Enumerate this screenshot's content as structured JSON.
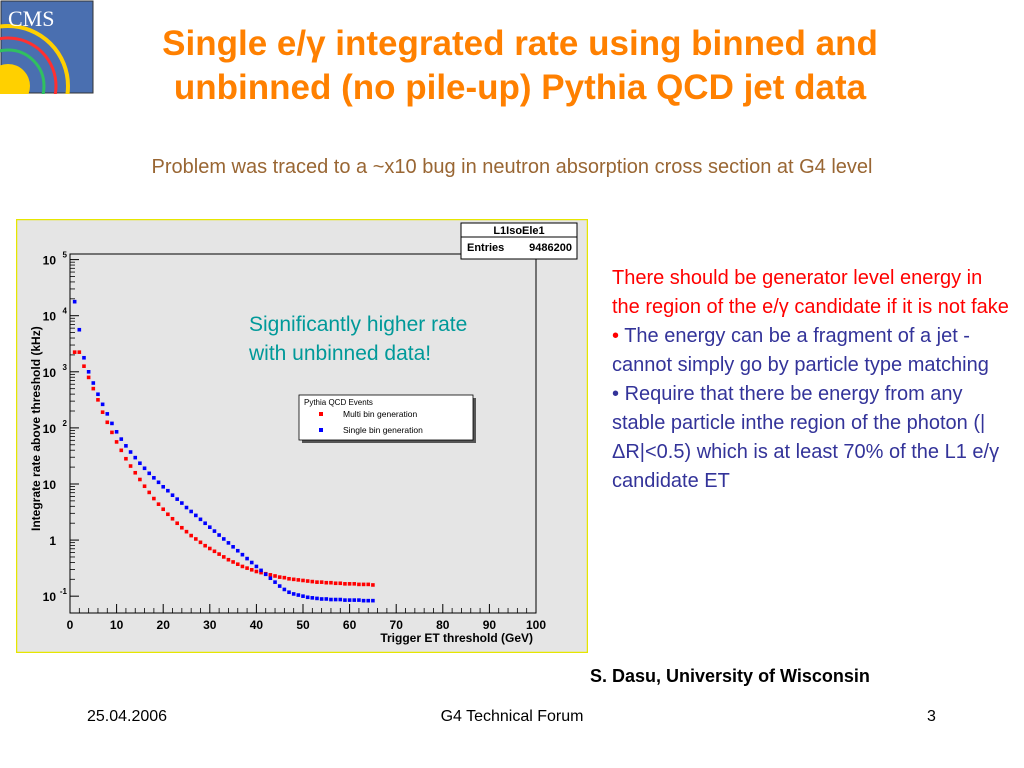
{
  "slide": {
    "title_line1": "Single e/γ integrated rate using binned and",
    "title_line2": "unbinned (no pile-up) Pythia QCD jet data",
    "subtitle": "Problem was traced to a ~x10 bug in neutron absorption cross section at G4 level",
    "logo_text": "CMS",
    "annotation_line1": "Significantly higher rate",
    "annotation_line2": "with unbinned data!",
    "bullets": {
      "intro": "There should be generator level energy in the region of the e/γ candidate if it is not fake",
      "item1": "The energy can be a fragment of a jet - cannot simply go by particle type matching",
      "item2": "Require that there be energy from any stable particle inthe region of the photon (|ΔR|<0.5) which is at least 70% of the L1 e/γ candidate ET",
      "marker": "•"
    },
    "author": "S. Dasu, University of Wisconsin",
    "footer": {
      "date": "25.04.2006",
      "center": "G4 Technical Forum",
      "page": "3"
    },
    "colors": {
      "title": "#ff8000",
      "subtitle": "#996633",
      "annotation": "#009999",
      "red_text": "#ff0000",
      "blue_text": "#333399",
      "plot_border": "#e6e600",
      "plot_bg": "#e5e5e5"
    }
  },
  "chart_data": {
    "type": "scatter",
    "stats_box": {
      "name": "L1IsoEle1",
      "entries_label": "Entries",
      "entries_value": "9486200"
    },
    "legend": {
      "title": "Pythia QCD Events",
      "placement": "upper-middle"
    },
    "xlabel": "Trigger ET threshold (GeV)",
    "ylabel": "Integrate rate above threshold (kHz)",
    "xlim": [
      0,
      100
    ],
    "ylim_log10": [
      -1.3,
      5.1
    ],
    "xticks": [
      0,
      10,
      20,
      30,
      40,
      50,
      60,
      70,
      80,
      90,
      100
    ],
    "yticks": [
      {
        "label": "10",
        "exp": "5",
        "value": 5
      },
      {
        "label": "10",
        "exp": "4",
        "value": 4
      },
      {
        "label": "10",
        "exp": "3",
        "value": 3
      },
      {
        "label": "10",
        "exp": "2",
        "value": 2
      },
      {
        "label": "10",
        "exp": "",
        "value": 1
      },
      {
        "label": "1",
        "exp": "",
        "value": 0
      },
      {
        "label": "10",
        "exp": "-1",
        "value": -1
      }
    ],
    "x": [
      1,
      2,
      3,
      4,
      5,
      6,
      7,
      8,
      9,
      10,
      11,
      12,
      13,
      14,
      15,
      16,
      17,
      18,
      19,
      20,
      21,
      22,
      23,
      24,
      25,
      26,
      27,
      28,
      29,
      30,
      31,
      32,
      33,
      34,
      35,
      36,
      37,
      38,
      39,
      40,
      41,
      42,
      43,
      44,
      45,
      46,
      47,
      48,
      49,
      50,
      51,
      52,
      53,
      54,
      55,
      56,
      57,
      58,
      59,
      60,
      61,
      62,
      63,
      64,
      65
    ],
    "series": [
      {
        "name": "Multi bin generation",
        "color": "#ff0000",
        "marker": "square",
        "log10_values": [
          3.35,
          3.35,
          3.1,
          2.9,
          2.7,
          2.5,
          2.28,
          2.1,
          1.92,
          1.75,
          1.6,
          1.45,
          1.32,
          1.2,
          1.08,
          0.96,
          0.85,
          0.74,
          0.64,
          0.55,
          0.46,
          0.38,
          0.3,
          0.22,
          0.15,
          0.08,
          0.02,
          -0.04,
          -0.1,
          -0.15,
          -0.2,
          -0.25,
          -0.3,
          -0.35,
          -0.39,
          -0.43,
          -0.47,
          -0.5,
          -0.53,
          -0.56,
          -0.58,
          -0.6,
          -0.62,
          -0.64,
          -0.66,
          -0.67,
          -0.69,
          -0.7,
          -0.71,
          -0.72,
          -0.73,
          -0.74,
          -0.75,
          -0.75,
          -0.76,
          -0.76,
          -0.77,
          -0.77,
          -0.78,
          -0.78,
          -0.78,
          -0.79,
          -0.79,
          -0.79,
          -0.8
        ]
      },
      {
        "name": "Single bin generation",
        "color": "#0000ff",
        "marker": "square",
        "log10_values": [
          4.25,
          3.75,
          3.25,
          3.0,
          2.8,
          2.6,
          2.42,
          2.25,
          2.08,
          1.93,
          1.8,
          1.68,
          1.57,
          1.47,
          1.37,
          1.28,
          1.19,
          1.11,
          1.03,
          0.95,
          0.88,
          0.8,
          0.73,
          0.66,
          0.58,
          0.51,
          0.44,
          0.37,
          0.3,
          0.23,
          0.16,
          0.09,
          0.02,
          -0.05,
          -0.12,
          -0.19,
          -0.26,
          -0.33,
          -0.4,
          -0.47,
          -0.54,
          -0.61,
          -0.68,
          -0.75,
          -0.82,
          -0.88,
          -0.93,
          -0.96,
          -0.98,
          -1.0,
          -1.02,
          -1.03,
          -1.04,
          -1.05,
          -1.05,
          -1.06,
          -1.06,
          -1.06,
          -1.07,
          -1.07,
          -1.07,
          -1.07,
          -1.08,
          -1.08,
          -1.08
        ]
      }
    ]
  }
}
